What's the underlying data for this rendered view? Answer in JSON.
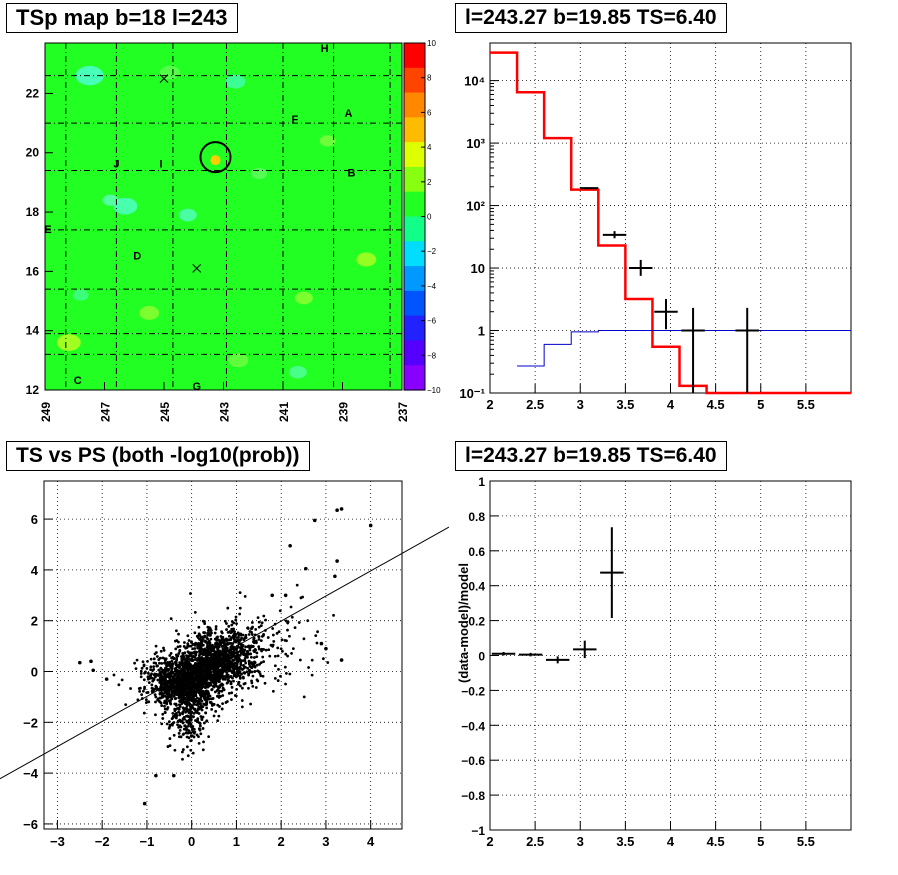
{
  "chart_data": [
    {
      "type": "heatmap",
      "title": "TSp map b=18 l=243",
      "x_ticks": [
        "249",
        "247",
        "245",
        "243",
        "241",
        "239",
        "237"
      ],
      "x_range": [
        249,
        237
      ],
      "y_ticks": [
        "12",
        "14",
        "16",
        "18",
        "20",
        "22"
      ],
      "y_range": [
        12,
        23.7
      ],
      "colorbar_ticks": [
        "10",
        "8",
        "6",
        "4",
        "2",
        "0",
        "−2",
        "−4",
        "−6",
        "−8",
        "−10"
      ],
      "colorbar_range": [
        -10,
        10
      ],
      "labels": [
        {
          "text": "H",
          "l": 239.6,
          "b": 23.4
        },
        {
          "text": "A",
          "l": 238.8,
          "b": 21.2
        },
        {
          "text": "F",
          "l": 240.6,
          "b": 21.0
        },
        {
          "text": "J",
          "l": 246.6,
          "b": 19.5
        },
        {
          "text": "I",
          "l": 245.1,
          "b": 19.5
        },
        {
          "text": "B",
          "l": 238.7,
          "b": 19.2
        },
        {
          "text": "E",
          "l": 248.9,
          "b": 17.3
        },
        {
          "text": "D",
          "l": 245.9,
          "b": 16.4
        },
        {
          "text": "C",
          "l": 247.9,
          "b": 12.2
        },
        {
          "text": "G",
          "l": 243.9,
          "b": 12.0
        }
      ],
      "circle_center": {
        "l": 243.27,
        "b": 19.85
      },
      "cross_markers": [
        {
          "l": 243.9,
          "b": 16.1
        },
        {
          "l": 245.0,
          "b": 22.5
        }
      ],
      "colors": {
        "background": "#22ff22"
      }
    },
    {
      "type": "line",
      "title": "l=243.27 b=19.85 TS=6.40",
      "y_scale": "log",
      "x_ticks": [
        "2",
        "2.5",
        "3",
        "3.5",
        "4",
        "4.5",
        "5",
        "5.5"
      ],
      "y_ticks": [
        "10⁻¹",
        "1",
        "10",
        "10²",
        "10³",
        "10⁴"
      ],
      "xlim": [
        2,
        6
      ],
      "ylim": [
        0.1,
        40000
      ],
      "grid": true,
      "series": [
        {
          "color": "#ff0000",
          "style": "step",
          "edges": [
            2,
            2.3,
            2.6,
            2.9,
            3.2,
            3.5,
            3.8,
            4.1,
            4.4,
            6
          ],
          "values": [
            28000,
            6500,
            1200,
            180,
            23,
            3.2,
            0.55,
            0.13,
            0.1
          ]
        },
        {
          "color": "#0000cc",
          "style": "step",
          "edges": [
            2.3,
            2.6,
            2.9,
            3.2,
            3.5,
            3.8,
            4.1,
            4.4,
            6
          ],
          "values": [
            0.27,
            0.6,
            0.95,
            1.0,
            1.0,
            1.0,
            1.0,
            1.0
          ]
        }
      ],
      "points": [
        {
          "x": 3.1,
          "y": 190,
          "xerr": 0.1,
          "ylo": 190,
          "yhi": 190
        },
        {
          "x": 3.38,
          "y": 34,
          "xerr": 0.13,
          "ylo": 30,
          "yhi": 39
        },
        {
          "x": 3.67,
          "y": 10,
          "xerr": 0.13,
          "ylo": 7.5,
          "yhi": 13.5
        },
        {
          "x": 3.95,
          "y": 2.0,
          "xerr": 0.13,
          "ylo": 1.05,
          "yhi": 3.2
        },
        {
          "x": 4.25,
          "y": 1.0,
          "xerr": 0.13,
          "ylo": 0.1,
          "yhi": 2.3
        },
        {
          "x": 4.85,
          "y": 1.0,
          "xerr": 0.13,
          "ylo": 0.1,
          "yhi": 2.3
        }
      ]
    },
    {
      "type": "scatter",
      "title": "TS vs PS (both -log10(prob))",
      "x_ticks": [
        "−3",
        "−2",
        "−1",
        "0",
        "1",
        "2",
        "3",
        "4"
      ],
      "y_ticks": [
        "−6",
        "−4",
        "−2",
        "0",
        "2",
        "4",
        "6"
      ],
      "xlim": [
        -3.3,
        4.7
      ],
      "ylim": [
        -6.2,
        7.5
      ],
      "grid": true,
      "reference_line": {
        "x1": -3.3,
        "y1": -3.25,
        "x2": 4.7,
        "y2": 4.65
      },
      "outliers": [
        [
          2.75,
          5.95
        ],
        [
          3.25,
          6.35
        ],
        [
          3.35,
          6.4
        ],
        [
          4.0,
          5.75
        ],
        [
          2.2,
          4.95
        ],
        [
          3.25,
          4.35
        ],
        [
          2.55,
          4.05
        ],
        [
          3.2,
          3.75
        ],
        [
          3.35,
          0.45
        ],
        [
          -2.5,
          0.35
        ],
        [
          -2.25,
          0.4
        ],
        [
          -1.05,
          -5.2
        ],
        [
          -0.8,
          -4.1
        ],
        [
          -0.4,
          -4.1
        ],
        [
          2.1,
          3.0
        ],
        [
          1.8,
          3.0
        ],
        [
          2.9,
          1.1
        ],
        [
          3.0,
          0.9
        ],
        [
          -1.9,
          -0.3
        ],
        [
          -2.2,
          0.05
        ]
      ]
    },
    {
      "type": "scatter",
      "title": "l=243.27 b=19.85 TS=6.40",
      "ylabel": "(data-model)/model",
      "x_ticks": [
        "2",
        "2.5",
        "3",
        "3.5",
        "4",
        "4.5",
        "5",
        "5.5"
      ],
      "y_ticks": [
        "−1",
        "−0.8",
        "−0.6",
        "−0.4",
        "−0.2",
        "0",
        "0.2",
        "0.4",
        "0.6",
        "0.8",
        "1"
      ],
      "xlim": [
        2,
        6
      ],
      "ylim": [
        -1,
        1
      ],
      "grid": true,
      "points": [
        {
          "x": 2.15,
          "y": 0.01,
          "xerr": 0.13,
          "yerr": 0.01
        },
        {
          "x": 2.45,
          "y": 0.005,
          "xerr": 0.13,
          "yerr": 0.01
        },
        {
          "x": 2.75,
          "y": -0.025,
          "xerr": 0.13,
          "yerr": 0.02
        },
        {
          "x": 3.05,
          "y": 0.035,
          "xerr": 0.13,
          "yerr": 0.05
        },
        {
          "x": 3.35,
          "y": 0.475,
          "xerr": 0.13,
          "yerr": 0.26
        }
      ]
    }
  ]
}
